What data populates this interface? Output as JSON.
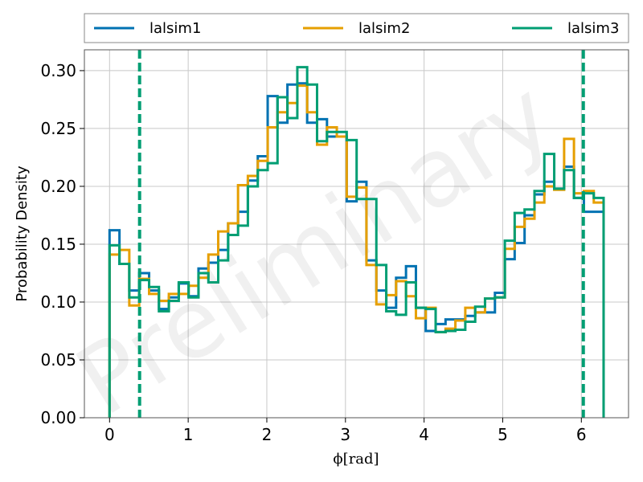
{
  "chart_data": {
    "type": "histogram",
    "xlabel": "ϕ[rad]",
    "ylabel": "Probability Density",
    "watermark": "Preliminary",
    "xlim": [
      -0.32,
      6.6
    ],
    "ylim": [
      0,
      0.318
    ],
    "xticks": [
      0,
      1,
      2,
      3,
      4,
      5,
      6
    ],
    "yticks": [
      0.0,
      0.05,
      0.1,
      0.15,
      0.2,
      0.25,
      0.3
    ],
    "ytick_labels": [
      "0.00",
      "0.05",
      "0.10",
      "0.15",
      "0.20",
      "0.25",
      "0.30"
    ],
    "grid": true,
    "legend": {
      "placement": "top",
      "columns": 3
    },
    "bin_edges": [
      0.0,
      0.126,
      0.251,
      0.377,
      0.503,
      0.628,
      0.754,
      0.88,
      1.005,
      1.131,
      1.257,
      1.382,
      1.508,
      1.634,
      1.759,
      1.885,
      2.011,
      2.136,
      2.262,
      2.388,
      2.513,
      2.639,
      2.765,
      2.89,
      3.016,
      3.142,
      3.267,
      3.393,
      3.519,
      3.644,
      3.77,
      3.896,
      4.021,
      4.147,
      4.273,
      4.398,
      4.524,
      4.65,
      4.775,
      4.901,
      5.027,
      5.152,
      5.278,
      5.404,
      5.529,
      5.655,
      5.781,
      5.906,
      6.032,
      6.158,
      6.283
    ],
    "series": [
      {
        "name": "lalsim1",
        "color": "#0072b2",
        "values": [
          0.162,
          0.133,
          0.11,
          0.125,
          0.11,
          0.094,
          0.104,
          0.116,
          0.105,
          0.129,
          0.134,
          0.145,
          0.168,
          0.178,
          0.205,
          0.226,
          0.278,
          0.255,
          0.288,
          0.289,
          0.255,
          0.258,
          0.243,
          0.243,
          0.187,
          0.204,
          0.136,
          0.11,
          0.095,
          0.121,
          0.131,
          0.095,
          0.075,
          0.081,
          0.085,
          0.085,
          0.088,
          0.091,
          0.091,
          0.108,
          0.137,
          0.151,
          0.175,
          0.193,
          0.204,
          0.198,
          0.217,
          0.19,
          0.178,
          0.178
        ]
      },
      {
        "name": "lalsim2",
        "color": "#e69f00",
        "values": [
          0.141,
          0.145,
          0.097,
          0.12,
          0.107,
          0.101,
          0.107,
          0.107,
          0.114,
          0.121,
          0.141,
          0.161,
          0.168,
          0.201,
          0.209,
          0.222,
          0.251,
          0.264,
          0.272,
          0.287,
          0.264,
          0.236,
          0.251,
          0.243,
          0.191,
          0.199,
          0.132,
          0.098,
          0.106,
          0.118,
          0.105,
          0.086,
          0.095,
          0.074,
          0.077,
          0.084,
          0.095,
          0.091,
          0.103,
          0.104,
          0.146,
          0.165,
          0.172,
          0.186,
          0.2,
          0.197,
          0.241,
          0.194,
          0.196,
          0.186
        ]
      },
      {
        "name": "lalsim3",
        "color": "#009e73",
        "values": [
          0.149,
          0.133,
          0.104,
          0.119,
          0.113,
          0.092,
          0.101,
          0.117,
          0.104,
          0.125,
          0.117,
          0.136,
          0.158,
          0.166,
          0.2,
          0.214,
          0.22,
          0.277,
          0.259,
          0.303,
          0.288,
          0.239,
          0.247,
          0.247,
          0.24,
          0.189,
          0.189,
          0.132,
          0.092,
          0.089,
          0.117,
          0.095,
          0.094,
          0.074,
          0.075,
          0.076,
          0.083,
          0.096,
          0.103,
          0.104,
          0.153,
          0.177,
          0.18,
          0.196,
          0.228,
          0.198,
          0.214,
          0.19,
          0.194,
          0.19
        ]
      }
    ],
    "vlines": [
      {
        "x": 0.382,
        "style": "dashed",
        "color": "#009e73"
      },
      {
        "x": 6.025,
        "style": "dashed",
        "color": "#009e73"
      }
    ]
  }
}
